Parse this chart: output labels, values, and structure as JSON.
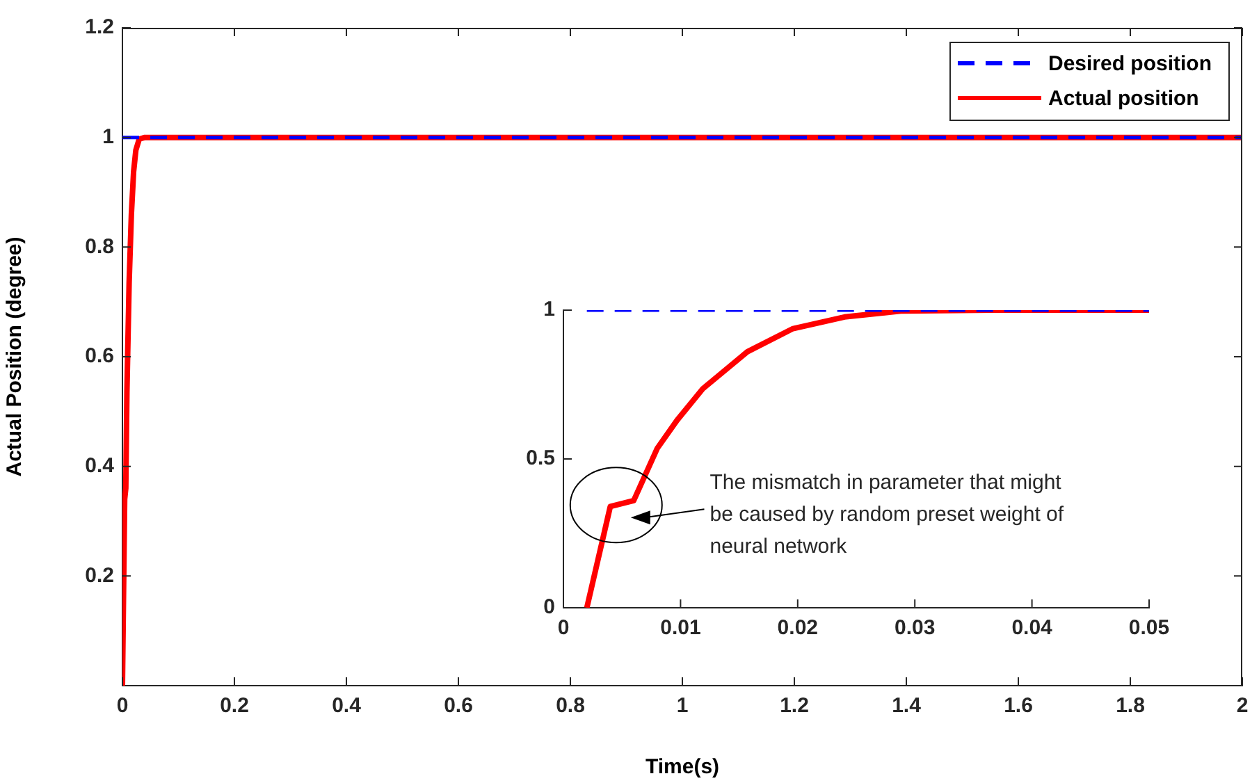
{
  "chart_data": [
    {
      "type": "line",
      "xlabel": "Time(s)",
      "ylabel": "Actual Position (degree)",
      "xlim": [
        0,
        2
      ],
      "xticks": [
        0,
        0.2,
        0.4,
        0.6,
        0.8,
        1,
        1.2,
        1.4,
        1.6,
        1.8,
        2
      ],
      "ylim": [
        0,
        1.2
      ],
      "yticks": [
        0.2,
        0.4,
        0.6,
        0.8,
        1,
        1.2
      ],
      "legend": "top right",
      "marker": "none",
      "grid": false,
      "series": [
        {
          "name": "Desired position",
          "color": "#0000ff",
          "line_style": "dashed",
          "x": [
            0,
            2
          ],
          "values": [
            1,
            1
          ]
        },
        {
          "name": "Actual position",
          "color": "#ff0000",
          "line_style": "solid",
          "x": [
            0,
            0.002,
            0.004,
            0.006,
            0.008,
            0.012,
            0.016,
            0.02,
            0.024,
            0.03,
            0.04,
            2
          ],
          "values": [
            0,
            0,
            0.34,
            0.36,
            0.535,
            0.736,
            0.86,
            0.938,
            0.977,
            0.997,
            1,
            1
          ]
        }
      ]
    },
    {
      "type": "line",
      "xlim": [
        0,
        0.05
      ],
      "xticks": [
        0,
        0.01,
        0.02,
        0.03,
        0.04,
        0.05
      ],
      "ylim": [
        0,
        1
      ],
      "yticks": [
        0,
        0.5,
        1
      ],
      "marker": "none",
      "grid": false,
      "series": [
        {
          "color": "#0000ff",
          "line_style": "dashed",
          "x": [
            0.002,
            0.05
          ],
          "values": [
            1,
            1
          ]
        },
        {
          "color": "#ff0000",
          "line_style": "solid",
          "x": [
            0.002,
            0.004,
            0.006,
            0.008,
            0.0097,
            0.0119,
            0.0157,
            0.0196,
            0.024,
            0.0288,
            0.0367,
            0.05
          ],
          "values": [
            0,
            0.34,
            0.36,
            0.535,
            0.63,
            0.736,
            0.86,
            0.938,
            0.977,
            0.997,
            1,
            1
          ]
        }
      ],
      "annotations": [
        "The mismatch in parameter that might be caused by random preset weight of neural network"
      ]
    }
  ]
}
